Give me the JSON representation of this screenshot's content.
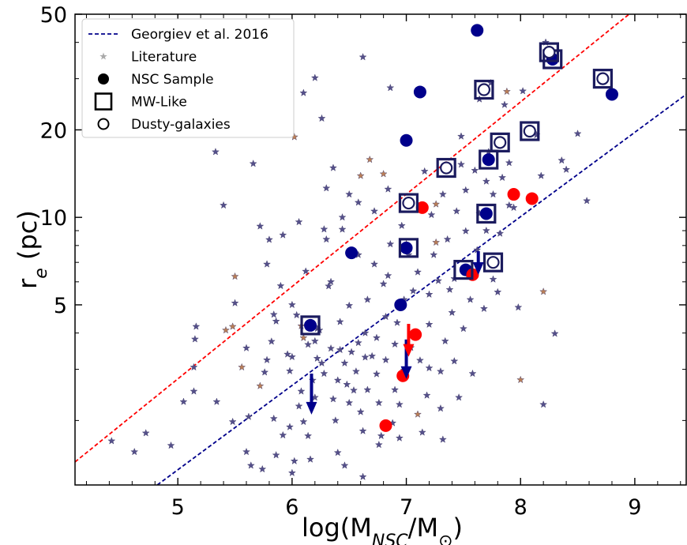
{
  "chart_data": {
    "type": "scatter",
    "xlabel_main": "log(M",
    "xlabel_sub": "NSC",
    "xlabel_mid": "/M",
    "xlabel_end": ")",
    "xlabel_sun": "⊙",
    "ylabel_main": "r",
    "ylabel_sub": "e",
    "ylabel_end": " (pc)",
    "xlim": [
      4.1,
      9.45
    ],
    "ylim": [
      1.2,
      50
    ],
    "yscale": "log",
    "x_ticks": [
      5,
      6,
      7,
      8,
      9
    ],
    "x_tick_labels": [
      "5",
      "6",
      "7",
      "8",
      "9"
    ],
    "y_ticks": [
      5,
      10,
      20,
      50
    ],
    "y_tick_labels": [
      "5",
      "10",
      "20",
      "50"
    ],
    "legend": {
      "placement": "top-left",
      "entries": [
        {
          "key": "georgiev",
          "label": "Georgiev et al. 2016",
          "marker": "dashed-line",
          "color": "#00008b"
        },
        {
          "key": "literature",
          "label": "Literature",
          "marker": "star",
          "color": "#aaaaaa"
        },
        {
          "key": "nsc",
          "label": "NSC Sample",
          "marker": "filled-circle",
          "color": "#000000"
        },
        {
          "key": "mw",
          "label": "MW-Like",
          "marker": "square",
          "color": "#000000"
        },
        {
          "key": "dusty",
          "label": "Dusty-galaxies",
          "marker": "open-circle",
          "color": "#000000"
        }
      ]
    },
    "lines": [
      {
        "name": "red-dashed",
        "color": "#ff0000",
        "points": [
          [
            4.1,
            1.44
          ],
          [
            8.95,
            50
          ]
        ]
      },
      {
        "name": "georgiev-fit",
        "color": "#00008b",
        "points": [
          [
            4.82,
            1.2
          ],
          [
            9.45,
            26.5
          ]
        ]
      }
    ],
    "literature_colors": {
      "purple": "#55508a",
      "orange": "#b97e57"
    },
    "literature_stars": [
      [
        4.42,
        1.7,
        "p"
      ],
      [
        4.62,
        1.56,
        "p"
      ],
      [
        4.72,
        1.81,
        "p"
      ],
      [
        4.94,
        1.64,
        "p"
      ],
      [
        5.05,
        2.32,
        "p"
      ],
      [
        5.14,
        3.05,
        "p"
      ],
      [
        5.16,
        4.21,
        "p"
      ],
      [
        5.15,
        3.81,
        "p"
      ],
      [
        5.14,
        2.52,
        "p"
      ],
      [
        5.34,
        2.32,
        "p"
      ],
      [
        5.48,
        1.98,
        "p"
      ],
      [
        5.33,
        16.8,
        "p"
      ],
      [
        5.4,
        11.0,
        "p"
      ],
      [
        5.5,
        6.26,
        "o"
      ],
      [
        5.5,
        5.07,
        "p"
      ],
      [
        5.42,
        4.09,
        "o"
      ],
      [
        5.48,
        4.21,
        "o"
      ],
      [
        5.62,
        2.06,
        "p"
      ],
      [
        5.6,
        1.56,
        "p"
      ],
      [
        5.64,
        1.4,
        "p"
      ],
      [
        5.72,
        2.63,
        "o"
      ],
      [
        5.76,
        2.93,
        "p"
      ],
      [
        5.6,
        3.55,
        "p"
      ],
      [
        5.56,
        3.05,
        "o"
      ],
      [
        5.66,
        15.3,
        "p"
      ],
      [
        5.72,
        9.32,
        "p"
      ],
      [
        5.8,
        8.38,
        "p"
      ],
      [
        5.78,
        6.9,
        "p"
      ],
      [
        5.84,
        4.63,
        "p"
      ],
      [
        5.82,
        3.74,
        "p"
      ],
      [
        5.78,
        3.23,
        "p"
      ],
      [
        5.86,
        4.39,
        "p"
      ],
      [
        5.92,
        8.69,
        "p"
      ],
      [
        5.9,
        5.81,
        "p"
      ],
      [
        5.96,
        3.38,
        "p"
      ],
      [
        5.98,
        2.96,
        "p"
      ],
      [
        5.74,
        1.36,
        "p"
      ],
      [
        5.84,
        2.03,
        "p"
      ],
      [
        5.86,
        1.52,
        "p"
      ],
      [
        5.92,
        1.78,
        "p"
      ],
      [
        5.98,
        1.9,
        "p"
      ],
      [
        6.02,
        18.9,
        "o"
      ],
      [
        6.06,
        9.64,
        "p"
      ],
      [
        6.0,
        5.0,
        "p"
      ],
      [
        6.04,
        4.61,
        "p"
      ],
      [
        6.08,
        4.23,
        "o"
      ],
      [
        6.1,
        3.85,
        "o"
      ],
      [
        6.0,
        3.31,
        "p"
      ],
      [
        6.12,
        6.52,
        "p"
      ],
      [
        6.02,
        1.45,
        "p"
      ],
      [
        6.0,
        1.32,
        "p"
      ],
      [
        6.08,
        2.52,
        "p"
      ],
      [
        6.06,
        2.24,
        "p"
      ],
      [
        6.1,
        1.98,
        "p"
      ],
      [
        6.14,
        1.77,
        "p"
      ],
      [
        6.18,
        2.75,
        "p"
      ],
      [
        6.2,
        2.4,
        "p"
      ],
      [
        6.22,
        3.27,
        "p"
      ],
      [
        6.14,
        3.65,
        "p"
      ],
      [
        6.2,
        3.75,
        "p"
      ],
      [
        6.22,
        4.14,
        "p"
      ],
      [
        6.16,
        1.47,
        "p"
      ],
      [
        6.1,
        26.8,
        "p"
      ],
      [
        6.2,
        30.2,
        "p"
      ],
      [
        6.26,
        21.9,
        "p"
      ],
      [
        6.24,
        4.09,
        "p"
      ],
      [
        6.26,
        3.15,
        "p"
      ],
      [
        6.28,
        2.9,
        "p"
      ],
      [
        6.28,
        9.1,
        "p"
      ],
      [
        6.3,
        12.6,
        "p"
      ],
      [
        6.36,
        14.8,
        "p"
      ],
      [
        6.3,
        8.4,
        "p"
      ],
      [
        6.32,
        5.8,
        "p"
      ],
      [
        6.34,
        6.0,
        "p"
      ],
      [
        6.34,
        3.54,
        "p"
      ],
      [
        6.36,
        2.37,
        "p"
      ],
      [
        6.38,
        2.0,
        "p"
      ],
      [
        6.4,
        2.75,
        "p"
      ],
      [
        6.42,
        3.5,
        "p"
      ],
      [
        6.42,
        4.37,
        "p"
      ],
      [
        6.44,
        9.09,
        "p"
      ],
      [
        6.44,
        10.0,
        "p"
      ],
      [
        6.46,
        3.15,
        "p"
      ],
      [
        6.48,
        2.66,
        "p"
      ],
      [
        6.5,
        2.3,
        "p"
      ],
      [
        6.4,
        1.55,
        "p"
      ],
      [
        6.46,
        1.4,
        "p"
      ],
      [
        6.5,
        12.0,
        "p"
      ],
      [
        6.5,
        4.97,
        "p"
      ],
      [
        6.52,
        3.44,
        "p"
      ],
      [
        6.54,
        2.54,
        "p"
      ],
      [
        6.56,
        2.95,
        "p"
      ],
      [
        6.58,
        3.7,
        "p"
      ],
      [
        6.58,
        7.43,
        "p"
      ],
      [
        6.58,
        11.25,
        "p"
      ],
      [
        6.6,
        13.9,
        "o"
      ],
      [
        6.62,
        35.6,
        "p"
      ],
      [
        6.6,
        2.14,
        "p"
      ],
      [
        6.62,
        1.84,
        "p"
      ],
      [
        6.62,
        1.28,
        "p"
      ],
      [
        6.64,
        3.3,
        "p"
      ],
      [
        6.64,
        4.0,
        "p"
      ],
      [
        6.66,
        5.21,
        "p"
      ],
      [
        6.66,
        2.55,
        "p"
      ],
      [
        6.68,
        15.8,
        "o"
      ],
      [
        6.7,
        3.33,
        "p"
      ],
      [
        6.72,
        10.5,
        "p"
      ],
      [
        6.72,
        6.9,
        "p"
      ],
      [
        6.74,
        3.85,
        "p"
      ],
      [
        6.74,
        2.89,
        "p"
      ],
      [
        6.76,
        2.3,
        "p"
      ],
      [
        6.78,
        1.77,
        "p"
      ],
      [
        6.76,
        1.65,
        "p"
      ],
      [
        6.8,
        14.1,
        "o"
      ],
      [
        6.8,
        5.9,
        "p"
      ],
      [
        6.82,
        4.55,
        "p"
      ],
      [
        6.82,
        3.23,
        "p"
      ],
      [
        6.84,
        12.5,
        "p"
      ],
      [
        6.84,
        6.3,
        "p"
      ],
      [
        6.86,
        8.09,
        "p"
      ],
      [
        6.86,
        27.9,
        "p"
      ],
      [
        6.88,
        1.96,
        "p"
      ],
      [
        6.9,
        3.66,
        "p"
      ],
      [
        6.9,
        2.55,
        "p"
      ],
      [
        6.92,
        4.34,
        "p"
      ],
      [
        6.94,
        1.74,
        "p"
      ],
      [
        6.94,
        2.27,
        "p"
      ],
      [
        6.96,
        9.36,
        "p"
      ],
      [
        6.98,
        5.21,
        "p"
      ],
      [
        6.98,
        2.98,
        "p"
      ],
      [
        7.0,
        8.09,
        "o"
      ],
      [
        7.02,
        7.43,
        "p"
      ],
      [
        7.04,
        3.56,
        "p"
      ],
      [
        7.06,
        5.58,
        "p"
      ],
      [
        7.1,
        6.48,
        "p"
      ],
      [
        7.1,
        2.1,
        "o"
      ],
      [
        7.12,
        3.22,
        "p"
      ],
      [
        7.14,
        1.82,
        "p"
      ],
      [
        7.16,
        14.4,
        "p"
      ],
      [
        7.18,
        2.44,
        "p"
      ],
      [
        7.2,
        5.43,
        "p"
      ],
      [
        7.2,
        4.28,
        "p"
      ],
      [
        7.2,
        3.03,
        "p"
      ],
      [
        7.22,
        10.2,
        "p"
      ],
      [
        7.24,
        7.43,
        "p"
      ],
      [
        7.26,
        8.2,
        "o"
      ],
      [
        7.26,
        11.1,
        "o"
      ],
      [
        7.28,
        6.05,
        "p"
      ],
      [
        7.3,
        2.95,
        "p"
      ],
      [
        7.3,
        2.2,
        "p"
      ],
      [
        7.32,
        1.72,
        "p"
      ],
      [
        7.32,
        12.0,
        "p"
      ],
      [
        7.34,
        3.75,
        "p"
      ],
      [
        7.36,
        8.4,
        "p"
      ],
      [
        7.38,
        5.64,
        "p"
      ],
      [
        7.4,
        4.7,
        "p"
      ],
      [
        7.42,
        6.15,
        "p"
      ],
      [
        7.42,
        3.2,
        "p"
      ],
      [
        7.44,
        10.5,
        "p"
      ],
      [
        7.46,
        2.4,
        "p"
      ],
      [
        7.48,
        15.2,
        "p"
      ],
      [
        7.48,
        19.0,
        "p"
      ],
      [
        7.5,
        4.14,
        "p"
      ],
      [
        7.52,
        8.97,
        "p"
      ],
      [
        7.52,
        12.4,
        "p"
      ],
      [
        7.54,
        6.3,
        "p"
      ],
      [
        7.56,
        5.21,
        "p"
      ],
      [
        7.58,
        2.9,
        "p"
      ],
      [
        7.6,
        14.5,
        "p"
      ],
      [
        7.62,
        7.72,
        "p"
      ],
      [
        7.64,
        10.3,
        "p"
      ],
      [
        7.64,
        25.5,
        "p"
      ],
      [
        7.68,
        4.85,
        "p"
      ],
      [
        7.7,
        9.0,
        "p"
      ],
      [
        7.7,
        13.3,
        "p"
      ],
      [
        7.72,
        16.8,
        "p"
      ],
      [
        7.74,
        29.0,
        "p"
      ],
      [
        7.76,
        12.0,
        "p"
      ],
      [
        7.76,
        6.12,
        "p"
      ],
      [
        7.8,
        5.53,
        "p"
      ],
      [
        7.82,
        8.8,
        "p"
      ],
      [
        7.84,
        13.7,
        "p"
      ],
      [
        7.86,
        24.4,
        "p"
      ],
      [
        7.88,
        27.1,
        "o"
      ],
      [
        7.9,
        15.4,
        "p"
      ],
      [
        7.9,
        11.0,
        "p"
      ],
      [
        7.94,
        10.8,
        "p"
      ],
      [
        7.98,
        4.9,
        "p"
      ],
      [
        8.0,
        2.76,
        "o"
      ],
      [
        8.02,
        27.2,
        "p"
      ],
      [
        8.1,
        19.8,
        "o"
      ],
      [
        8.14,
        19.2,
        "p"
      ],
      [
        8.18,
        13.9,
        "p"
      ],
      [
        8.22,
        40.0,
        "p"
      ],
      [
        8.2,
        5.55,
        "o"
      ],
      [
        8.3,
        3.98,
        "p"
      ],
      [
        8.2,
        2.27,
        "p"
      ],
      [
        8.36,
        15.7,
        "p"
      ],
      [
        8.4,
        14.6,
        "p"
      ],
      [
        8.5,
        19.4,
        "p"
      ],
      [
        8.58,
        11.4,
        "p"
      ]
    ],
    "nsc_sample": {
      "blue": [
        [
          7.62,
          44.0
        ],
        [
          8.28,
          35.0
        ],
        [
          8.8,
          26.5
        ],
        [
          7.0,
          18.4
        ],
        [
          7.72,
          15.8
        ],
        [
          7.7,
          10.3
        ],
        [
          7.0,
          7.85
        ],
        [
          6.52,
          7.55
        ],
        [
          7.52,
          6.6
        ],
        [
          6.95,
          5.0
        ],
        [
          6.16,
          4.25
        ],
        [
          7.12,
          27.0
        ]
      ],
      "red": [
        [
          7.14,
          10.8
        ],
        [
          7.94,
          12.0
        ],
        [
          8.1,
          11.6
        ],
        [
          7.58,
          6.35
        ],
        [
          7.08,
          3.95
        ],
        [
          6.97,
          2.85
        ],
        [
          6.82,
          1.92
        ]
      ]
    },
    "mw_like": [
      [
        7.68,
        27.5
      ],
      [
        8.25,
        37.0
      ],
      [
        8.72,
        30.0
      ],
      [
        7.82,
        18.1
      ],
      [
        8.08,
        19.8
      ],
      [
        7.35,
        14.8
      ],
      [
        7.72,
        15.8
      ],
      [
        7.02,
        11.2
      ],
      [
        7.7,
        10.3
      ],
      [
        7.02,
        7.85
      ],
      [
        7.5,
        6.6
      ],
      [
        7.76,
        7.0
      ],
      [
        6.16,
        4.25
      ],
      [
        8.28,
        35.0
      ]
    ],
    "dusty": [
      [
        7.68,
        27.5
      ],
      [
        8.25,
        37.0
      ],
      [
        8.72,
        30.0
      ],
      [
        7.82,
        18.1
      ],
      [
        8.08,
        19.8
      ],
      [
        7.35,
        14.8
      ],
      [
        7.02,
        11.2
      ],
      [
        7.76,
        7.0
      ]
    ],
    "upper_limits": [
      {
        "x": 6.17,
        "y": 2.9,
        "y_to": 2.15,
        "color": "#00008b"
      },
      {
        "x": 7.0,
        "y": 3.8,
        "y_to": 2.85,
        "color": "#00008b"
      },
      {
        "x": 7.63,
        "y": 7.65,
        "y_to": 6.5,
        "color": "#00008b"
      },
      {
        "x": 7.02,
        "y": 4.3,
        "y_to": 3.4,
        "color": "#ff0000"
      }
    ]
  }
}
